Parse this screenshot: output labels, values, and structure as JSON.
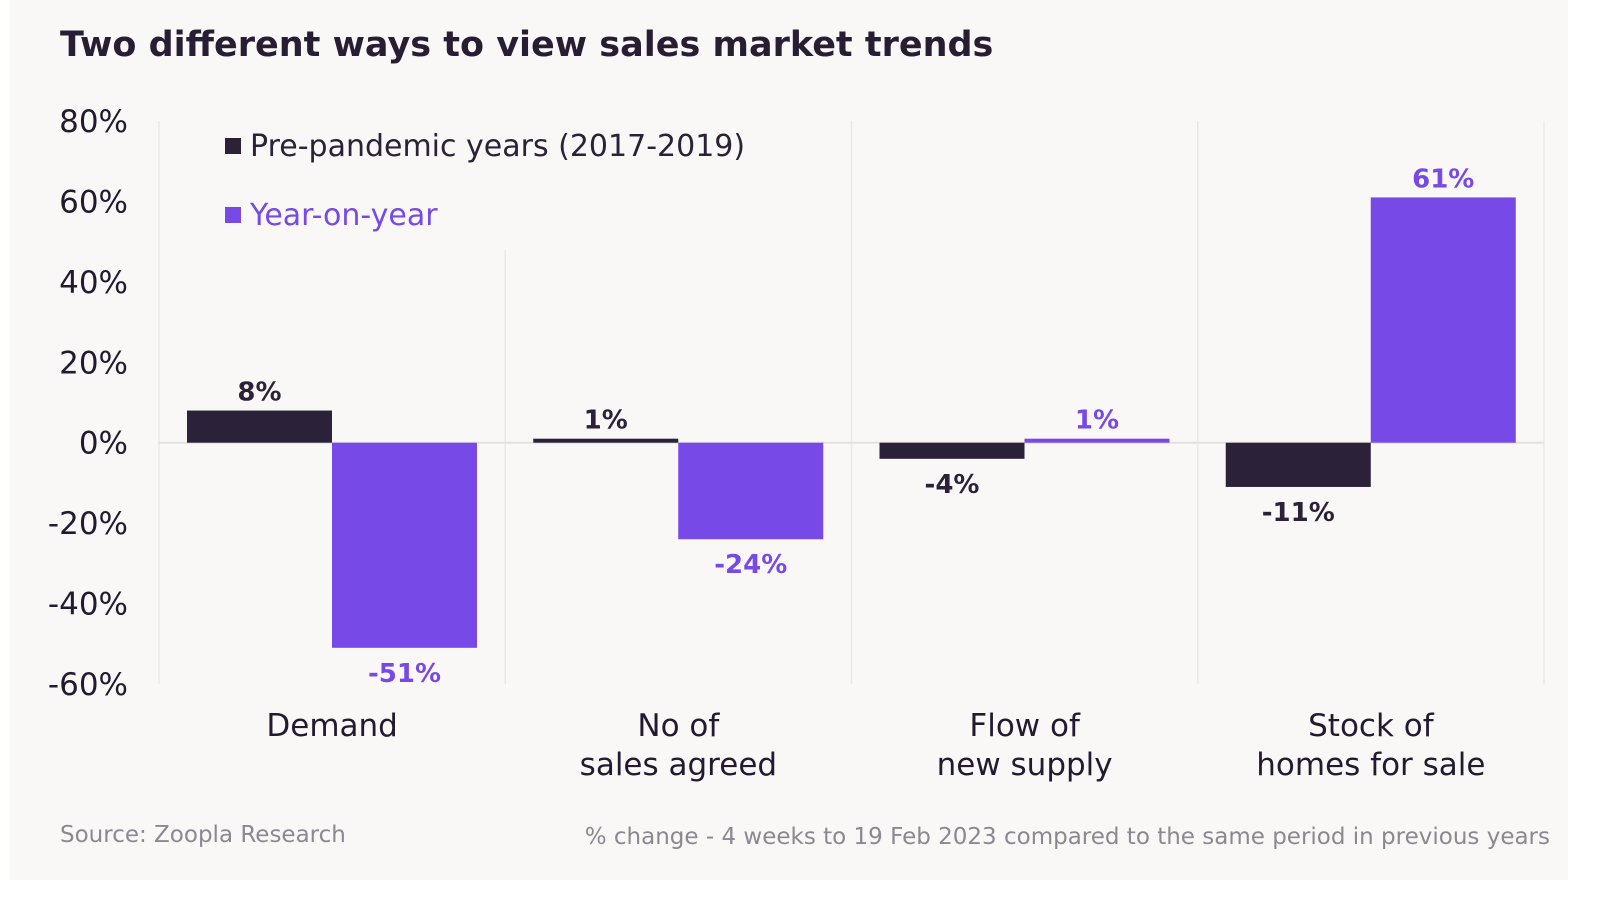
{
  "chart_data": {
    "type": "bar",
    "title": "Two different ways to view sales market trends",
    "categories": [
      [
        "Demand"
      ],
      [
        "No of",
        "sales agreed"
      ],
      [
        "Flow of",
        "new supply"
      ],
      [
        "Stock of",
        "homes for sale"
      ]
    ],
    "series": [
      {
        "name": "Pre-pandemic years (2017-2019)",
        "values": [
          8,
          1,
          -4,
          -11
        ],
        "labels": [
          "8%",
          "1%",
          "-4%",
          "-11%"
        ],
        "color": "#2b2138"
      },
      {
        "name": "Year-on-year",
        "values": [
          -51,
          -24,
          1,
          61
        ],
        "labels": [
          "-51%",
          "-24%",
          "1%",
          "61%"
        ],
        "color": "#7749e6"
      }
    ],
    "ylim": [
      -60,
      80
    ],
    "yticks": [
      80,
      60,
      40,
      20,
      0,
      -20,
      -40,
      -60
    ],
    "ytick_labels": [
      "80%",
      "60%",
      "40%",
      "20%",
      "0%",
      "-20%",
      "-40%",
      "-60%"
    ],
    "grid": true,
    "legend": "top-left",
    "source": "Source: Zoopla Research",
    "note": "% change - 4 weeks to 19 Feb 2023 compared to the same period in previous years"
  }
}
